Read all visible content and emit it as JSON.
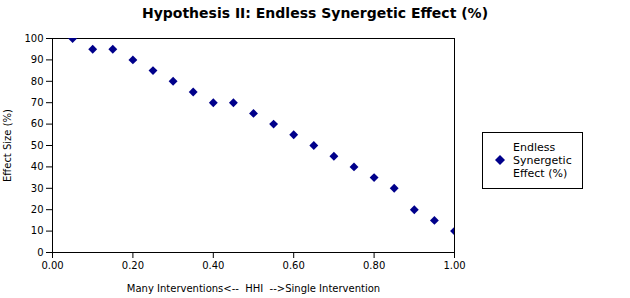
{
  "chart_data": {
    "type": "scatter",
    "title": "Hypothesis II: Endless Synergetic Effect (%)",
    "xlabel": "Many Interventions<--  HHI  -->Single Intervention",
    "ylabel": "Effect Size (%)",
    "x": [
      0.05,
      0.1,
      0.15,
      0.2,
      0.25,
      0.3,
      0.35,
      0.4,
      0.45,
      0.5,
      0.55,
      0.6,
      0.65,
      0.7,
      0.75,
      0.8,
      0.85,
      0.9,
      0.95,
      1.0
    ],
    "series": [
      {
        "name": "Endless\nSynergetic\nEffect (%)",
        "color": "#00008B",
        "marker": "diamond",
        "values": [
          100,
          95,
          95,
          90,
          85,
          80,
          75,
          70,
          70,
          65,
          60,
          55,
          50,
          45,
          40,
          35,
          30,
          20,
          15,
          10
        ]
      }
    ],
    "xlim": [
      0.0,
      1.0
    ],
    "ylim": [
      0,
      100
    ],
    "xticks": [
      {
        "value": 0.0,
        "label": "0.00"
      },
      {
        "value": 0.2,
        "label": "0.20"
      },
      {
        "value": 0.4,
        "label": "0.40"
      },
      {
        "value": 0.6,
        "label": "0.60"
      },
      {
        "value": 0.8,
        "label": "0.80"
      },
      {
        "value": 1.0,
        "label": "1.00"
      }
    ],
    "yticks": [
      0,
      10,
      20,
      30,
      40,
      50,
      60,
      70,
      80,
      90,
      100
    ],
    "grid": false,
    "legend": "right"
  }
}
